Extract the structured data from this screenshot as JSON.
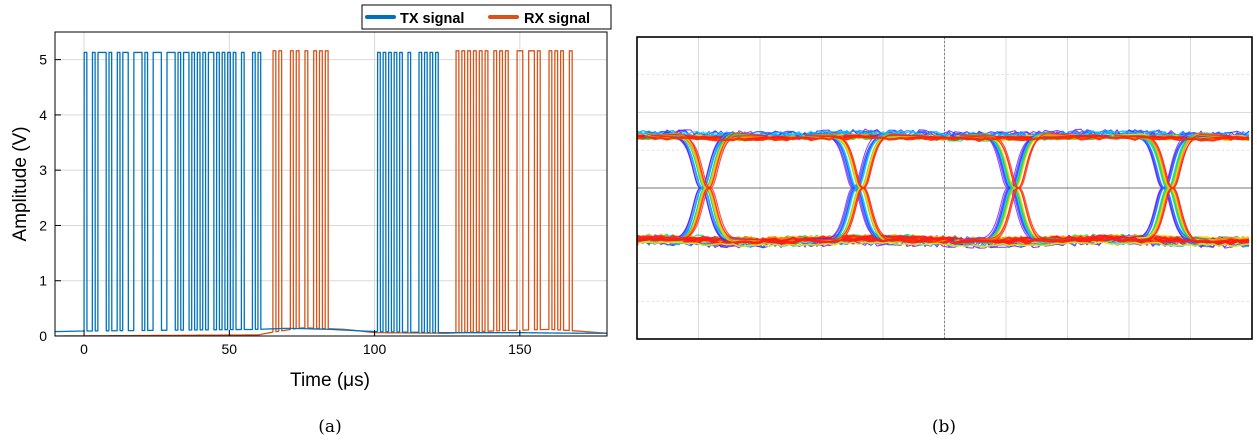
{
  "chart_data": [
    {
      "type": "line",
      "panel_label": "(a)",
      "xlabel": "Time (μs)",
      "ylabel": "Amplitude (V)",
      "xlim": [
        -10,
        180
      ],
      "ylim": [
        0,
        5.5
      ],
      "xticks": [
        0,
        50,
        100,
        150
      ],
      "yticks": [
        0,
        1,
        2,
        3,
        4,
        5
      ],
      "grid": true,
      "legend_position": "top-right",
      "series": [
        {
          "name": "TX signal",
          "color": "#0072BD",
          "high": 5.13,
          "baseline_x": [
            -10,
            0,
            60,
            70,
            85,
            100,
            123,
            130,
            150,
            170,
            180
          ],
          "baseline_y": [
            0.08,
            0.09,
            0.12,
            0.14,
            0.12,
            0.08,
            0.06,
            0.06,
            0.06,
            0.05,
            0.05
          ],
          "bursts": [
            {
              "start": 0,
              "end": 61,
              "bit_period": 0.95
            },
            {
              "start": 101,
              "end": 123,
              "bit_period": 0.95
            }
          ]
        },
        {
          "name": "RX signal",
          "color": "#D95319",
          "high": 5.16,
          "baseline_x": [
            -10,
            60,
            65,
            75,
            90,
            100,
            125,
            140,
            160,
            170,
            180
          ],
          "baseline_y": [
            0.0,
            0.02,
            0.07,
            0.15,
            0.12,
            0.06,
            0.05,
            0.09,
            0.12,
            0.09,
            0.05
          ],
          "bursts": [
            {
              "start": 65,
              "end": 85,
              "bit_period": 1.0
            },
            {
              "start": 128,
              "end": 168,
              "bit_period": 1.0
            }
          ]
        }
      ]
    },
    {
      "type": "eye-diagram",
      "panel_label": "(b)",
      "grid": true,
      "high_level": 3.7,
      "low_level": 1.8,
      "crossings": 4
    }
  ]
}
